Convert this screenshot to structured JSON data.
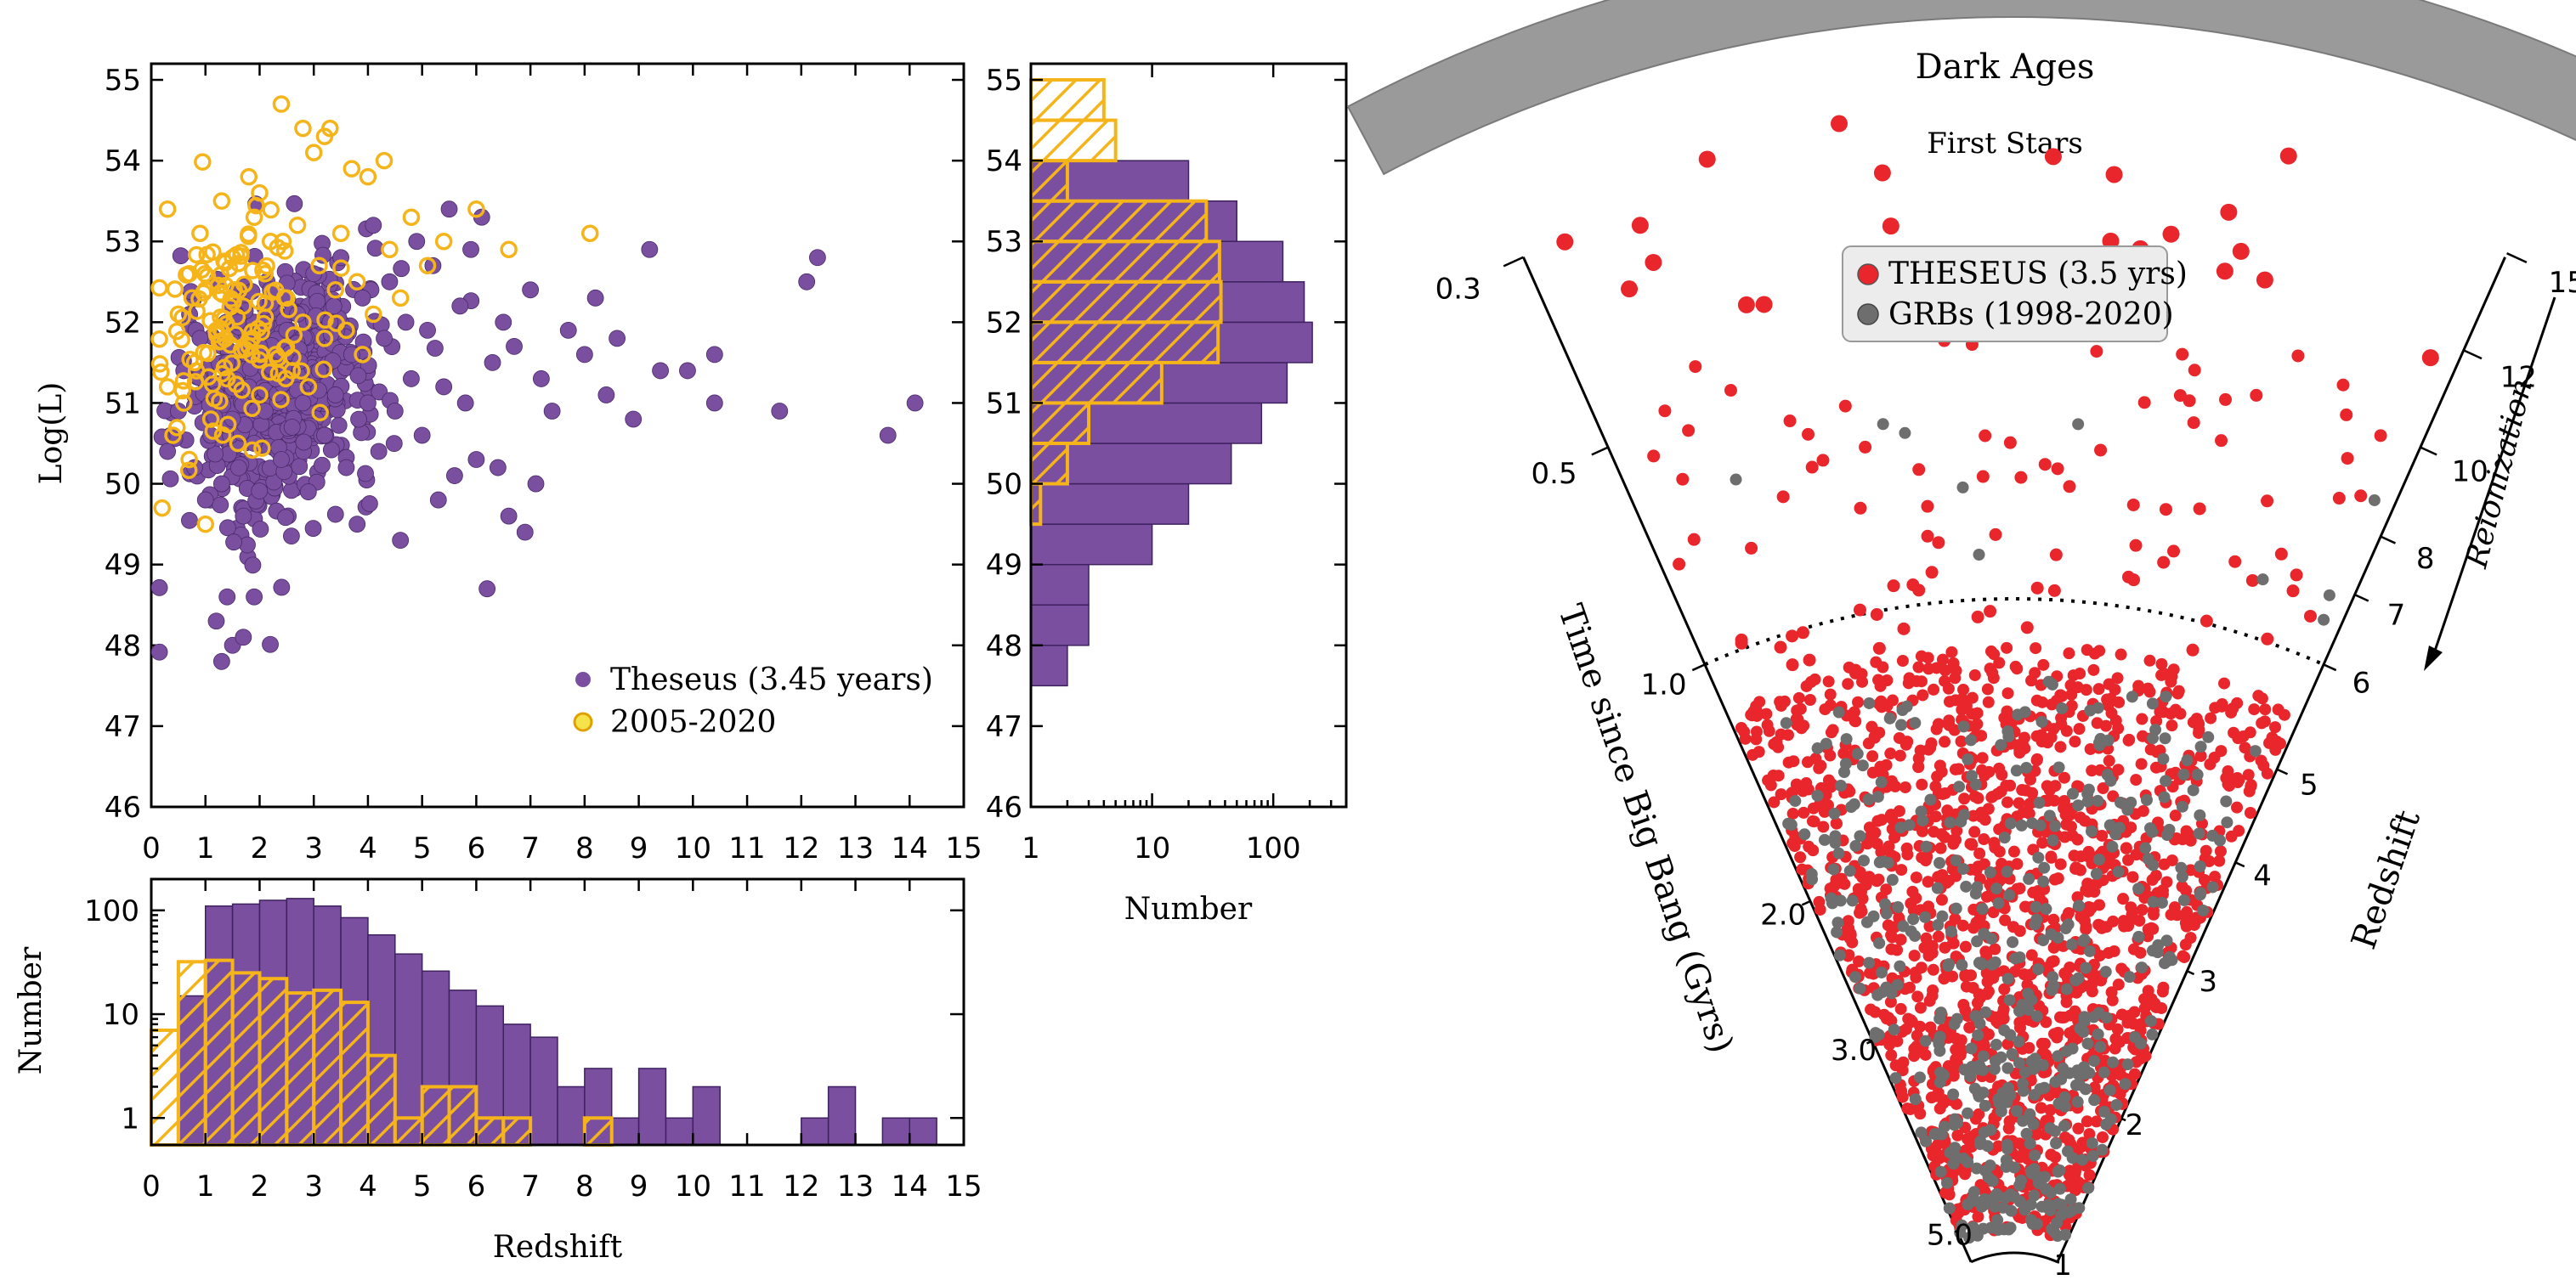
{
  "chart_data": [
    {
      "id": "scatter",
      "type": "scatter",
      "xlabel": "",
      "ylabel": "Log(L)",
      "xlim": [
        0,
        15
      ],
      "ylim": [
        46,
        55.2
      ],
      "xticks": [
        "0",
        "1",
        "2",
        "3",
        "4",
        "5",
        "6",
        "7",
        "8",
        "9",
        "10",
        "11",
        "12",
        "13",
        "14",
        "15"
      ],
      "yticks": [
        "46",
        "47",
        "48",
        "49",
        "50",
        "51",
        "52",
        "53",
        "54",
        "55"
      ],
      "legend": {
        "position": "bottom-right",
        "entries": [
          "Theseus (3.45 years)",
          "2005-2020"
        ]
      },
      "series": [
        {
          "name": "Theseus (3.45 years)",
          "color": "#7b4fa0",
          "marker": "filled-circle",
          "points": [
            [
              0.3,
              50.4
            ],
            [
              0.5,
              50.9
            ],
            [
              0.6,
              51.4
            ],
            [
              0.8,
              50.2
            ],
            [
              0.9,
              51.8
            ],
            [
              1.0,
              49.8
            ],
            [
              1.1,
              50.6
            ],
            [
              1.2,
              51.1
            ],
            [
              1.3,
              50.0
            ],
            [
              1.4,
              51.5
            ],
            [
              1.5,
              50.8
            ],
            [
              1.6,
              52.0
            ],
            [
              1.7,
              49.6
            ],
            [
              1.8,
              51.2
            ],
            [
              1.9,
              50.5
            ],
            [
              2.0,
              51.7
            ],
            [
              2.1,
              50.9
            ],
            [
              2.2,
              52.4
            ],
            [
              2.3,
              51.3
            ],
            [
              2.4,
              50.3
            ],
            [
              2.5,
              51.9
            ],
            [
              2.6,
              50.7
            ],
            [
              2.7,
              52.1
            ],
            [
              2.8,
              51.0
            ],
            [
              2.9,
              49.9
            ],
            [
              3.0,
              52.6
            ],
            [
              3.1,
              51.4
            ],
            [
              3.2,
              50.6
            ],
            [
              3.3,
              52.0
            ],
            [
              3.4,
              51.1
            ],
            [
              3.5,
              52.8
            ],
            [
              3.6,
              50.2
            ],
            [
              3.7,
              51.6
            ],
            [
              3.8,
              49.5
            ],
            [
              3.9,
              52.3
            ],
            [
              4.0,
              51.0
            ],
            [
              4.1,
              53.2
            ],
            [
              4.2,
              50.4
            ],
            [
              4.3,
              51.8
            ],
            [
              4.4,
              52.5
            ],
            [
              4.5,
              50.9
            ],
            [
              4.6,
              49.3
            ],
            [
              4.7,
              52.0
            ],
            [
              4.8,
              51.3
            ],
            [
              4.9,
              53.0
            ],
            [
              5.0,
              50.6
            ],
            [
              5.1,
              51.9
            ],
            [
              5.2,
              52.7
            ],
            [
              5.3,
              49.8
            ],
            [
              5.4,
              51.2
            ],
            [
              5.5,
              53.4
            ],
            [
              5.6,
              50.1
            ],
            [
              5.7,
              52.2
            ],
            [
              5.8,
              51.0
            ],
            [
              5.9,
              52.9
            ],
            [
              6.0,
              50.3
            ],
            [
              6.1,
              53.3
            ],
            [
              6.2,
              48.7
            ],
            [
              6.3,
              51.5
            ],
            [
              6.4,
              50.2
            ],
            [
              6.5,
              52.0
            ],
            [
              6.6,
              49.6
            ],
            [
              6.7,
              51.7
            ],
            [
              6.9,
              49.4
            ],
            [
              7.0,
              52.4
            ],
            [
              7.1,
              50.0
            ],
            [
              7.2,
              51.3
            ],
            [
              7.4,
              50.9
            ],
            [
              7.7,
              51.9
            ],
            [
              8.0,
              51.6
            ],
            [
              8.2,
              52.3
            ],
            [
              8.4,
              51.1
            ],
            [
              8.6,
              51.8
            ],
            [
              8.9,
              50.8
            ],
            [
              9.2,
              52.9
            ],
            [
              9.4,
              51.4
            ],
            [
              9.9,
              51.4
            ],
            [
              10.4,
              51.6
            ],
            [
              10.4,
              51.0
            ],
            [
              11.6,
              50.9
            ],
            [
              12.1,
              52.5
            ],
            [
              12.3,
              52.8
            ],
            [
              13.6,
              50.6
            ],
            [
              14.1,
              51.0
            ],
            [
              1.2,
              48.3
            ],
            [
              1.3,
              47.8
            ],
            [
              1.5,
              48.0
            ],
            [
              1.7,
              48.1
            ],
            [
              1.4,
              48.6
            ],
            [
              1.9,
              48.6
            ]
          ]
        },
        {
          "name": "2005-2020",
          "color": "#f4b41a",
          "marker": "open-circle",
          "points": [
            [
              0.2,
              49.7
            ],
            [
              0.3,
              51.2
            ],
            [
              0.3,
              53.4
            ],
            [
              0.4,
              50.6
            ],
            [
              0.5,
              52.1
            ],
            [
              0.6,
              51.0
            ],
            [
              0.7,
              52.6
            ],
            [
              0.7,
              50.3
            ],
            [
              0.8,
              51.5
            ],
            [
              0.9,
              53.1
            ],
            [
              1.0,
              49.5
            ],
            [
              1.0,
              52.4
            ],
            [
              1.1,
              50.8
            ],
            [
              1.2,
              51.9
            ],
            [
              1.3,
              53.5
            ],
            [
              1.4,
              51.3
            ],
            [
              1.5,
              52.8
            ],
            [
              1.6,
              50.5
            ],
            [
              1.7,
              52.2
            ],
            [
              1.8,
              51.7
            ],
            [
              1.9,
              53.3
            ],
            [
              2.0,
              51.1
            ],
            [
              2.1,
              52.6
            ],
            [
              2.2,
              53.0
            ],
            [
              2.3,
              51.6
            ],
            [
              2.4,
              54.7
            ],
            [
              2.5,
              52.3
            ],
            [
              2.6,
              51.4
            ],
            [
              2.7,
              53.2
            ],
            [
              2.8,
              52.0
            ],
            [
              2.9,
              51.2
            ],
            [
              3.0,
              54.1
            ],
            [
              3.1,
              52.7
            ],
            [
              3.2,
              51.8
            ],
            [
              3.3,
              54.4
            ],
            [
              3.4,
              52.4
            ],
            [
              3.5,
              53.1
            ],
            [
              3.6,
              51.9
            ],
            [
              3.7,
              53.9
            ],
            [
              3.8,
              52.5
            ],
            [
              3.9,
              51.6
            ],
            [
              4.0,
              53.8
            ],
            [
              4.1,
              52.1
            ],
            [
              4.3,
              54.0
            ],
            [
              4.4,
              52.9
            ],
            [
              4.6,
              52.3
            ],
            [
              4.8,
              53.3
            ],
            [
              5.1,
              52.7
            ],
            [
              5.4,
              53.0
            ],
            [
              6.0,
              53.4
            ],
            [
              6.6,
              52.9
            ],
            [
              8.1,
              53.1
            ],
            [
              1.8,
              53.8
            ],
            [
              2.0,
              53.6
            ],
            [
              2.8,
              54.4
            ],
            [
              3.2,
              54.3
            ]
          ]
        }
      ]
    },
    {
      "id": "hist-redshift",
      "type": "bar",
      "xlabel": "Redshift",
      "ylabel": "Number",
      "yscale": "log",
      "xlim": [
        0,
        15
      ],
      "ylim": [
        0.55,
        200
      ],
      "xticks": [
        "0",
        "1",
        "2",
        "3",
        "4",
        "5",
        "6",
        "7",
        "8",
        "9",
        "10",
        "11",
        "12",
        "13",
        "14",
        "15"
      ],
      "yticks": [
        "1",
        "10",
        "100"
      ],
      "bin_width": 0.5,
      "series": [
        {
          "name": "Theseus (3.45 years)",
          "color": "#7b4fa0",
          "fill": "solid",
          "bins": [
            [
              0.5,
              15
            ],
            [
              1.0,
              110
            ],
            [
              1.5,
              115
            ],
            [
              2.0,
              125
            ],
            [
              2.5,
              130
            ],
            [
              3.0,
              110
            ],
            [
              3.5,
              85
            ],
            [
              4.0,
              58
            ],
            [
              4.5,
              38
            ],
            [
              5.0,
              26
            ],
            [
              5.5,
              17
            ],
            [
              6.0,
              12
            ],
            [
              6.5,
              8
            ],
            [
              7.0,
              6
            ],
            [
              7.5,
              2
            ],
            [
              8.0,
              3
            ],
            [
              8.5,
              1
            ],
            [
              9.0,
              3
            ],
            [
              9.5,
              1
            ],
            [
              10.0,
              2
            ],
            [
              12.0,
              1
            ],
            [
              12.5,
              2
            ],
            [
              13.5,
              1
            ],
            [
              14.0,
              1
            ]
          ]
        },
        {
          "name": "2005-2020",
          "color": "#f4b41a",
          "fill": "hatched",
          "bins": [
            [
              0.0,
              7
            ],
            [
              0.5,
              32
            ],
            [
              1.0,
              33
            ],
            [
              1.5,
              25
            ],
            [
              2.0,
              22
            ],
            [
              2.5,
              16
            ],
            [
              3.0,
              17
            ],
            [
              3.5,
              13
            ],
            [
              4.0,
              4
            ],
            [
              4.5,
              1
            ],
            [
              5.0,
              2
            ],
            [
              5.5,
              2
            ],
            [
              6.0,
              1
            ],
            [
              6.5,
              1
            ],
            [
              8.0,
              1
            ]
          ]
        }
      ]
    },
    {
      "id": "hist-luminosity",
      "type": "bar",
      "orientation": "horizontal",
      "xlabel": "Number",
      "ylabel": "",
      "xscale": "log",
      "xlim": [
        1,
        400
      ],
      "ylim": [
        46,
        55.2
      ],
      "xticks": [
        "1",
        "10",
        "100"
      ],
      "yticks": [
        "46",
        "47",
        "48",
        "49",
        "50",
        "51",
        "52",
        "53",
        "54",
        "55"
      ],
      "bin_width": 0.5,
      "series": [
        {
          "name": "Theseus (3.45 years)",
          "color": "#7b4fa0",
          "fill": "solid",
          "bins": [
            [
              47.5,
              2
            ],
            [
              48.0,
              3
            ],
            [
              48.5,
              3
            ],
            [
              49.0,
              10
            ],
            [
              49.5,
              20
            ],
            [
              50.0,
              45
            ],
            [
              50.5,
              80
            ],
            [
              51.0,
              130
            ],
            [
              51.5,
              210
            ],
            [
              52.0,
              180
            ],
            [
              52.5,
              120
            ],
            [
              53.0,
              50
            ],
            [
              53.5,
              20
            ]
          ]
        },
        {
          "name": "2005-2020",
          "color": "#f4b41a",
          "fill": "hatched",
          "bins": [
            [
              49.5,
              1.2
            ],
            [
              50.0,
              2
            ],
            [
              50.5,
              3
            ],
            [
              51.0,
              12
            ],
            [
              51.5,
              35
            ],
            [
              52.0,
              37
            ],
            [
              52.5,
              36
            ],
            [
              53.0,
              28
            ],
            [
              53.5,
              2
            ],
            [
              54.0,
              5
            ],
            [
              54.5,
              4
            ],
            [
              55.0,
              1
            ]
          ]
        }
      ]
    },
    {
      "id": "cosmic-cone",
      "type": "scatter",
      "title_band": "Dark Ages",
      "subtitle": "First Stars",
      "left_axis_label": "Time since Big Bang (Gyrs)",
      "left_ticks": [
        "0.3",
        "0.5",
        "1.0",
        "2.0",
        "3.0",
        "5.0"
      ],
      "right_axis_label": "Redshift",
      "right_ticks": [
        "15",
        "12",
        "10",
        "8",
        "7",
        "6",
        "5",
        "4",
        "3",
        "2",
        "1"
      ],
      "annotation": "Reionization",
      "reionization_redshift": 6,
      "legend": {
        "position": "top-center",
        "entries": [
          "THESEUS (3.5 yrs)",
          "GRBs (1998-2020)"
        ]
      },
      "series": [
        {
          "name": "THESEUS (3.5 yrs)",
          "color": "#e8262b",
          "count_shown": "approx. 1500"
        },
        {
          "name": "GRBs (1998-2020)",
          "color": "#6e6e6e",
          "count_shown": "approx. 500"
        }
      ]
    }
  ],
  "colors": {
    "theseus": "#7b4fa0",
    "observed": "#f4b41a",
    "cone_red": "#e8262b",
    "cone_grey": "#6e6e6e",
    "band": "#9a9a9a"
  }
}
